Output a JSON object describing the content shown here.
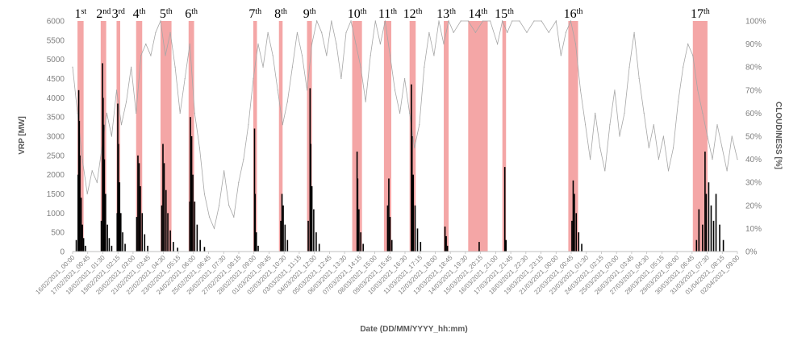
{
  "chart_data": {
    "type": "bar",
    "xlabel": "Date (DD/MM/YYYY_hh:mm)",
    "ylabel_left": "VRP [MW]",
    "ylabel_right": "CLOUDINESS [%]",
    "ylim_left": [
      0,
      6000
    ],
    "ylim_right": [
      0,
      100
    ],
    "left_ticks": [
      "0",
      "500",
      "1000",
      "1500",
      "2000",
      "2500",
      "3000",
      "3500",
      "4000",
      "4500",
      "5000",
      "5500",
      "6000"
    ],
    "right_ticks": [
      "0%",
      "10%",
      "20%",
      "30%",
      "40%",
      "50%",
      "60%",
      "70%",
      "80%",
      "90%",
      "100%"
    ],
    "x_range": [
      "2021-02-16 00:00",
      "2021-04-02 09:00"
    ],
    "x_tick_labels": [
      "16/02/2021_00:00",
      "17/02/2021_00:45",
      "18/02/2021_01:30",
      "19/02/2021_02:15",
      "20/02/2021_03:00",
      "21/02/2021_03:45",
      "22/02/2021_04:30",
      "23/02/2021_05:15",
      "24/02/2021_06:00",
      "25/02/2021_06:45",
      "26/02/2021_07:30",
      "27/02/2021_08:15",
      "28/02/2021_09:00",
      "01/03/2021_09:45",
      "02/03/2021_10:30",
      "03/03/2021_11:15",
      "04/03/2021_12:00",
      "05/03/2021_12:45",
      "06/03/2021_13:30",
      "07/03/2021_14:15",
      "08/03/2021_15:00",
      "09/03/2021_15:45",
      "10/03/2021_16:30",
      "11/03/2021_17:15",
      "12/03/2021_18:00",
      "13/03/2021_18:45",
      "14/03/2021_19:30",
      "15/03/2021_20:15",
      "16/03/2021_21:00",
      "17/03/2021_21:45",
      "18/03/2021_22:30",
      "19/03/2021_23:15",
      "21/03/2021_00:00",
      "22/03/2021_00:45",
      "23/03/2021_01:30",
      "24/03/2021_02:15",
      "25/03/2021_03:00",
      "26/03/2021_03:45",
      "27/03/2021_04:30",
      "28/03/2021_05:15",
      "29/03/2021_06:00",
      "30/03/2021_06:45",
      "31/03/2021_07:30",
      "01/04/2021_08:15",
      "02/04/2021_09:00"
    ],
    "paroxysms": [
      {
        "num": "1",
        "sup": "st",
        "start": "2021-02-16 08:00",
        "end": "2021-02-16 18:00"
      },
      {
        "num": "2",
        "sup": "nd",
        "start": "2021-02-17 22:00",
        "end": "2021-02-18 07:00"
      },
      {
        "num": "3",
        "sup": "rd",
        "start": "2021-02-19 00:00",
        "end": "2021-02-19 06:00"
      },
      {
        "num": "4",
        "sup": "th",
        "start": "2021-02-20 08:00",
        "end": "2021-02-20 18:00"
      },
      {
        "num": "5",
        "sup": "th",
        "start": "2021-02-22 00:00",
        "end": "2021-02-22 18:00"
      },
      {
        "num": "6",
        "sup": "th",
        "start": "2021-02-23 22:00",
        "end": "2021-02-24 07:00"
      },
      {
        "num": "7",
        "sup": "th",
        "start": "2021-02-28 08:00",
        "end": "2021-02-28 14:00"
      },
      {
        "num": "8",
        "sup": "th",
        "start": "2021-03-02 02:00",
        "end": "2021-03-02 08:00"
      },
      {
        "num": "9",
        "sup": "th",
        "start": "2021-03-04 00:00",
        "end": "2021-03-04 08:00"
      },
      {
        "num": "10",
        "sup": "th",
        "start": "2021-03-07 02:00",
        "end": "2021-03-07 18:00"
      },
      {
        "num": "11",
        "sup": "th",
        "start": "2021-03-09 06:00",
        "end": "2021-03-09 18:00"
      },
      {
        "num": "12",
        "sup": "th",
        "start": "2021-03-11 00:00",
        "end": "2021-03-11 10:00"
      },
      {
        "num": "13",
        "sup": "th",
        "start": "2021-03-13 08:00",
        "end": "2021-03-13 16:00"
      },
      {
        "num": "14",
        "sup": "th",
        "start": "2021-03-15 00:00",
        "end": "2021-03-16 08:00"
      },
      {
        "num": "15",
        "sup": "th",
        "start": "2021-03-17 08:00",
        "end": "2021-03-17 14:00"
      },
      {
        "num": "16",
        "sup": "th",
        "start": "2021-03-21 20:00",
        "end": "2021-03-22 12:00"
      },
      {
        "num": "17",
        "sup": "th",
        "start": "2021-03-30 08:00",
        "end": "2021-03-31 08:00"
      }
    ],
    "vrp_series": [
      {
        "t": "2021-02-16 06:00",
        "v": 300
      },
      {
        "t": "2021-02-16 09:00",
        "v": 2000
      },
      {
        "t": "2021-02-16 10:00",
        "v": 4200
      },
      {
        "t": "2021-02-16 11:00",
        "v": 3400
      },
      {
        "t": "2021-02-16 12:00",
        "v": 2500
      },
      {
        "t": "2021-02-16 14:00",
        "v": 1400
      },
      {
        "t": "2021-02-16 16:00",
        "v": 700
      },
      {
        "t": "2021-02-16 18:00",
        "v": 350
      },
      {
        "t": "2021-02-16 21:00",
        "v": 150
      },
      {
        "t": "2021-02-17 23:00",
        "v": 800
      },
      {
        "t": "2021-02-18 01:00",
        "v": 4900
      },
      {
        "t": "2021-02-18 02:00",
        "v": 4000
      },
      {
        "t": "2021-02-18 03:00",
        "v": 3300
      },
      {
        "t": "2021-02-18 04:00",
        "v": 2400
      },
      {
        "t": "2021-02-18 06:00",
        "v": 1500
      },
      {
        "t": "2021-02-18 09:00",
        "v": 700
      },
      {
        "t": "2021-02-18 12:00",
        "v": 350
      },
      {
        "t": "2021-02-18 16:00",
        "v": 150
      },
      {
        "t": "2021-02-19 01:00",
        "v": 1000
      },
      {
        "t": "2021-02-19 02:00",
        "v": 3850
      },
      {
        "t": "2021-02-19 03:00",
        "v": 2800
      },
      {
        "t": "2021-02-19 05:00",
        "v": 1800
      },
      {
        "t": "2021-02-19 07:00",
        "v": 1000
      },
      {
        "t": "2021-02-19 10:00",
        "v": 500
      },
      {
        "t": "2021-02-19 14:00",
        "v": 200
      },
      {
        "t": "2021-02-20 09:00",
        "v": 900
      },
      {
        "t": "2021-02-20 11:00",
        "v": 2500
      },
      {
        "t": "2021-02-20 13:00",
        "v": 2300
      },
      {
        "t": "2021-02-20 15:00",
        "v": 1700
      },
      {
        "t": "2021-02-20 18:00",
        "v": 1000
      },
      {
        "t": "2021-02-20 22:00",
        "v": 450
      },
      {
        "t": "2021-02-21 03:00",
        "v": 150
      },
      {
        "t": "2021-02-22 02:00",
        "v": 1200
      },
      {
        "t": "2021-02-22 04:00",
        "v": 2800
      },
      {
        "t": "2021-02-22 06:00",
        "v": 2300
      },
      {
        "t": "2021-02-22 09:00",
        "v": 1600
      },
      {
        "t": "2021-02-22 12:00",
        "v": 1000
      },
      {
        "t": "2021-02-22 16:00",
        "v": 550
      },
      {
        "t": "2021-02-22 21:00",
        "v": 250
      },
      {
        "t": "2021-02-23 04:00",
        "v": 100
      },
      {
        "t": "2021-02-24 00:00",
        "v": 1300
      },
      {
        "t": "2021-02-24 01:00",
        "v": 3500
      },
      {
        "t": "2021-02-24 03:00",
        "v": 3000
      },
      {
        "t": "2021-02-24 05:00",
        "v": 2000
      },
      {
        "t": "2021-02-24 08:00",
        "v": 1300
      },
      {
        "t": "2021-02-24 12:00",
        "v": 700
      },
      {
        "t": "2021-02-24 17:00",
        "v": 300
      },
      {
        "t": "2021-02-25 00:00",
        "v": 120
      },
      {
        "t": "2021-02-28 10:00",
        "v": 3200
      },
      {
        "t": "2021-02-28 11:00",
        "v": 1500
      },
      {
        "t": "2021-02-28 13:00",
        "v": 500
      },
      {
        "t": "2021-02-28 16:00",
        "v": 150
      },
      {
        "t": "2021-03-02 05:00",
        "v": 800
      },
      {
        "t": "2021-03-02 07:00",
        "v": 1500
      },
      {
        "t": "2021-03-02 09:00",
        "v": 1200
      },
      {
        "t": "2021-03-02 12:00",
        "v": 700
      },
      {
        "t": "2021-03-02 16:00",
        "v": 300
      },
      {
        "t": "2021-03-04 02:00",
        "v": 800
      },
      {
        "t": "2021-03-04 05:00",
        "v": 4250
      },
      {
        "t": "2021-03-04 06:00",
        "v": 2800
      },
      {
        "t": "2021-03-04 08:00",
        "v": 1700
      },
      {
        "t": "2021-03-04 11:00",
        "v": 1100
      },
      {
        "t": "2021-03-04 15:00",
        "v": 500
      },
      {
        "t": "2021-03-04 20:00",
        "v": 200
      },
      {
        "t": "2021-03-07 10:00",
        "v": 2600
      },
      {
        "t": "2021-03-07 11:00",
        "v": 1900
      },
      {
        "t": "2021-03-07 13:00",
        "v": 1100
      },
      {
        "t": "2021-03-07 16:00",
        "v": 500
      },
      {
        "t": "2021-03-07 20:00",
        "v": 200
      },
      {
        "t": "2021-03-09 12:00",
        "v": 1200
      },
      {
        "t": "2021-03-09 14:00",
        "v": 1900
      },
      {
        "t": "2021-03-09 16:00",
        "v": 900
      },
      {
        "t": "2021-03-09 19:00",
        "v": 300
      },
      {
        "t": "2021-03-11 03:00",
        "v": 4350
      },
      {
        "t": "2021-03-11 04:00",
        "v": 3000
      },
      {
        "t": "2021-03-11 06:00",
        "v": 2000
      },
      {
        "t": "2021-03-11 09:00",
        "v": 1200
      },
      {
        "t": "2021-03-11 13:00",
        "v": 600
      },
      {
        "t": "2021-03-11 18:00",
        "v": 250
      },
      {
        "t": "2021-03-13 10:00",
        "v": 650
      },
      {
        "t": "2021-03-13 12:00",
        "v": 400
      },
      {
        "t": "2021-03-13 14:00",
        "v": 150
      },
      {
        "t": "2021-03-15 18:00",
        "v": 250
      },
      {
        "t": "2021-03-17 12:00",
        "v": 2200
      },
      {
        "t": "2021-03-17 14:00",
        "v": 300
      },
      {
        "t": "2021-03-22 02:00",
        "v": 800
      },
      {
        "t": "2021-03-22 04:00",
        "v": 1850
      },
      {
        "t": "2021-03-22 06:00",
        "v": 1500
      },
      {
        "t": "2021-03-22 09:00",
        "v": 1000
      },
      {
        "t": "2021-03-22 13:00",
        "v": 500
      },
      {
        "t": "2021-03-22 18:00",
        "v": 200
      },
      {
        "t": "2021-03-30 14:00",
        "v": 300
      },
      {
        "t": "2021-03-30 18:00",
        "v": 1100
      },
      {
        "t": "2021-03-31 00:00",
        "v": 700
      },
      {
        "t": "2021-03-31 04:00",
        "v": 2600
      },
      {
        "t": "2021-03-31 06:00",
        "v": 1500
      },
      {
        "t": "2021-03-31 10:00",
        "v": 1800
      },
      {
        "t": "2021-03-31 14:00",
        "v": 1200
      },
      {
        "t": "2021-03-31 18:00",
        "v": 800
      },
      {
        "t": "2021-03-31 22:00",
        "v": 1500
      },
      {
        "t": "2021-04-01 04:00",
        "v": 700
      },
      {
        "t": "2021-04-01 10:00",
        "v": 300
      }
    ],
    "cloudiness_series": [
      {
        "t": "2021-02-16 00:00",
        "v": 80
      },
      {
        "t": "2021-02-16 08:00",
        "v": 60
      },
      {
        "t": "2021-02-16 16:00",
        "v": 40
      },
      {
        "t": "2021-02-17 00:00",
        "v": 25
      },
      {
        "t": "2021-02-17 08:00",
        "v": 35
      },
      {
        "t": "2021-02-17 16:00",
        "v": 30
      },
      {
        "t": "2021-02-18 00:00",
        "v": 45
      },
      {
        "t": "2021-02-18 08:00",
        "v": 60
      },
      {
        "t": "2021-02-18 16:00",
        "v": 50
      },
      {
        "t": "2021-02-19 00:00",
        "v": 70
      },
      {
        "t": "2021-02-19 08:00",
        "v": 55
      },
      {
        "t": "2021-02-19 16:00",
        "v": 65
      },
      {
        "t": "2021-02-20 00:00",
        "v": 80
      },
      {
        "t": "2021-02-20 08:00",
        "v": 60
      },
      {
        "t": "2021-02-20 16:00",
        "v": 85
      },
      {
        "t": "2021-02-21 00:00",
        "v": 90
      },
      {
        "t": "2021-02-21 08:00",
        "v": 85
      },
      {
        "t": "2021-02-21 16:00",
        "v": 95
      },
      {
        "t": "2021-02-22 00:00",
        "v": 100
      },
      {
        "t": "2021-02-22 08:00",
        "v": 85
      },
      {
        "t": "2021-02-22 16:00",
        "v": 95
      },
      {
        "t": "2021-02-23 00:00",
        "v": 80
      },
      {
        "t": "2021-02-23 08:00",
        "v": 60
      },
      {
        "t": "2021-02-23 16:00",
        "v": 75
      },
      {
        "t": "2021-02-24 00:00",
        "v": 90
      },
      {
        "t": "2021-02-24 08:00",
        "v": 60
      },
      {
        "t": "2021-02-24 16:00",
        "v": 45
      },
      {
        "t": "2021-02-25 00:00",
        "v": 25
      },
      {
        "t": "2021-02-25 08:00",
        "v": 15
      },
      {
        "t": "2021-02-25 16:00",
        "v": 10
      },
      {
        "t": "2021-02-26 00:00",
        "v": 20
      },
      {
        "t": "2021-02-26 08:00",
        "v": 35
      },
      {
        "t": "2021-02-26 16:00",
        "v": 20
      },
      {
        "t": "2021-02-27 00:00",
        "v": 15
      },
      {
        "t": "2021-02-27 08:00",
        "v": 30
      },
      {
        "t": "2021-02-27 16:00",
        "v": 40
      },
      {
        "t": "2021-02-28 00:00",
        "v": 55
      },
      {
        "t": "2021-02-28 08:00",
        "v": 75
      },
      {
        "t": "2021-02-28 16:00",
        "v": 90
      },
      {
        "t": "2021-03-01 00:00",
        "v": 80
      },
      {
        "t": "2021-03-01 08:00",
        "v": 95
      },
      {
        "t": "2021-03-01 16:00",
        "v": 85
      },
      {
        "t": "2021-03-02 00:00",
        "v": 70
      },
      {
        "t": "2021-03-02 08:00",
        "v": 55
      },
      {
        "t": "2021-03-02 16:00",
        "v": 65
      },
      {
        "t": "2021-03-03 00:00",
        "v": 80
      },
      {
        "t": "2021-03-03 08:00",
        "v": 95
      },
      {
        "t": "2021-03-03 16:00",
        "v": 85
      },
      {
        "t": "2021-03-04 00:00",
        "v": 70
      },
      {
        "t": "2021-03-04 08:00",
        "v": 90
      },
      {
        "t": "2021-03-04 16:00",
        "v": 100
      },
      {
        "t": "2021-03-05 00:00",
        "v": 95
      },
      {
        "t": "2021-03-05 08:00",
        "v": 85
      },
      {
        "t": "2021-03-05 16:00",
        "v": 100
      },
      {
        "t": "2021-03-06 00:00",
        "v": 90
      },
      {
        "t": "2021-03-06 08:00",
        "v": 75
      },
      {
        "t": "2021-03-06 16:00",
        "v": 95
      },
      {
        "t": "2021-03-07 00:00",
        "v": 100
      },
      {
        "t": "2021-03-07 08:00",
        "v": 90
      },
      {
        "t": "2021-03-07 16:00",
        "v": 80
      },
      {
        "t": "2021-03-08 00:00",
        "v": 65
      },
      {
        "t": "2021-03-08 08:00",
        "v": 85
      },
      {
        "t": "2021-03-08 16:00",
        "v": 100
      },
      {
        "t": "2021-03-09 00:00",
        "v": 90
      },
      {
        "t": "2021-03-09 08:00",
        "v": 100
      },
      {
        "t": "2021-03-09 16:00",
        "v": 85
      },
      {
        "t": "2021-03-10 00:00",
        "v": 70
      },
      {
        "t": "2021-03-10 08:00",
        "v": 60
      },
      {
        "t": "2021-03-10 16:00",
        "v": 75
      },
      {
        "t": "2021-03-11 00:00",
        "v": 60
      },
      {
        "t": "2021-03-11 08:00",
        "v": 45
      },
      {
        "t": "2021-03-11 16:00",
        "v": 55
      },
      {
        "t": "2021-03-12 00:00",
        "v": 80
      },
      {
        "t": "2021-03-12 08:00",
        "v": 95
      },
      {
        "t": "2021-03-12 16:00",
        "v": 85
      },
      {
        "t": "2021-03-13 00:00",
        "v": 100
      },
      {
        "t": "2021-03-13 08:00",
        "v": 90
      },
      {
        "t": "2021-03-13 16:00",
        "v": 100
      },
      {
        "t": "2021-03-14 00:00",
        "v": 95
      },
      {
        "t": "2021-03-14 12:00",
        "v": 100
      },
      {
        "t": "2021-03-15 00:00",
        "v": 100
      },
      {
        "t": "2021-03-15 12:00",
        "v": 95
      },
      {
        "t": "2021-03-16 00:00",
        "v": 100
      },
      {
        "t": "2021-03-16 12:00",
        "v": 100
      },
      {
        "t": "2021-03-17 00:00",
        "v": 90
      },
      {
        "t": "2021-03-17 08:00",
        "v": 100
      },
      {
        "t": "2021-03-17 16:00",
        "v": 95
      },
      {
        "t": "2021-03-18 00:00",
        "v": 100
      },
      {
        "t": "2021-03-18 12:00",
        "v": 100
      },
      {
        "t": "2021-03-19 00:00",
        "v": 95
      },
      {
        "t": "2021-03-19 12:00",
        "v": 100
      },
      {
        "t": "2021-03-20 00:00",
        "v": 100
      },
      {
        "t": "2021-03-20 12:00",
        "v": 95
      },
      {
        "t": "2021-03-21 00:00",
        "v": 100
      },
      {
        "t": "2021-03-21 08:00",
        "v": 85
      },
      {
        "t": "2021-03-21 16:00",
        "v": 95
      },
      {
        "t": "2021-03-22 00:00",
        "v": 100
      },
      {
        "t": "2021-03-22 08:00",
        "v": 90
      },
      {
        "t": "2021-03-22 16:00",
        "v": 70
      },
      {
        "t": "2021-03-23 00:00",
        "v": 55
      },
      {
        "t": "2021-03-23 08:00",
        "v": 40
      },
      {
        "t": "2021-03-23 16:00",
        "v": 60
      },
      {
        "t": "2021-03-24 00:00",
        "v": 45
      },
      {
        "t": "2021-03-24 08:00",
        "v": 35
      },
      {
        "t": "2021-03-24 16:00",
        "v": 55
      },
      {
        "t": "2021-03-25 00:00",
        "v": 70
      },
      {
        "t": "2021-03-25 08:00",
        "v": 50
      },
      {
        "t": "2021-03-25 16:00",
        "v": 60
      },
      {
        "t": "2021-03-26 00:00",
        "v": 80
      },
      {
        "t": "2021-03-26 08:00",
        "v": 95
      },
      {
        "t": "2021-03-26 16:00",
        "v": 75
      },
      {
        "t": "2021-03-27 00:00",
        "v": 60
      },
      {
        "t": "2021-03-27 08:00",
        "v": 45
      },
      {
        "t": "2021-03-27 16:00",
        "v": 55
      },
      {
        "t": "2021-03-28 00:00",
        "v": 40
      },
      {
        "t": "2021-03-28 08:00",
        "v": 50
      },
      {
        "t": "2021-03-28 16:00",
        "v": 35
      },
      {
        "t": "2021-03-29 00:00",
        "v": 45
      },
      {
        "t": "2021-03-29 08:00",
        "v": 65
      },
      {
        "t": "2021-03-29 16:00",
        "v": 80
      },
      {
        "t": "2021-03-30 00:00",
        "v": 90
      },
      {
        "t": "2021-03-30 08:00",
        "v": 85
      },
      {
        "t": "2021-03-30 16:00",
        "v": 70
      },
      {
        "t": "2021-03-31 00:00",
        "v": 60
      },
      {
        "t": "2021-03-31 08:00",
        "v": 50
      },
      {
        "t": "2021-03-31 16:00",
        "v": 40
      },
      {
        "t": "2021-04-01 00:00",
        "v": 55
      },
      {
        "t": "2021-04-01 08:00",
        "v": 45
      },
      {
        "t": "2021-04-01 16:00",
        "v": 35
      },
      {
        "t": "2021-04-02 00:00",
        "v": 50
      },
      {
        "t": "2021-04-02 09:00",
        "v": 40
      }
    ],
    "colors": {
      "vrp": "#000000",
      "cloudiness": "#a6a6a6",
      "paroxysm_band": "#f4a6a6",
      "tick_text": "#7f7f7f",
      "axis_title": "#595959"
    }
  }
}
